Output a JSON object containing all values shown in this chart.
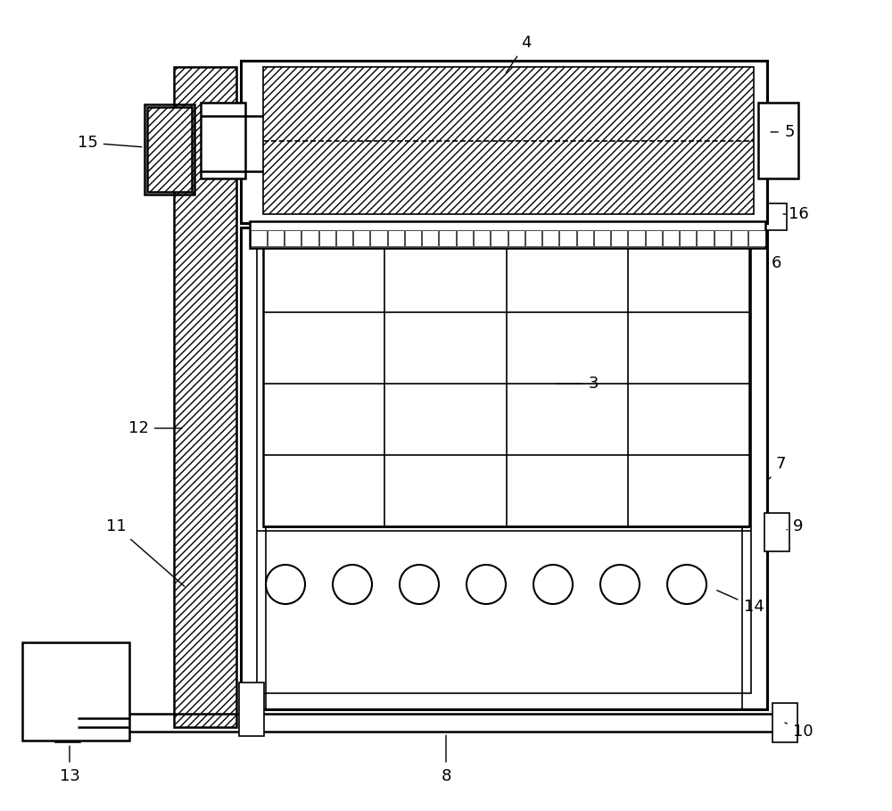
{
  "bg_color": "#ffffff",
  "line_color": "#000000",
  "fig_width": 10.0,
  "fig_height": 9.09
}
